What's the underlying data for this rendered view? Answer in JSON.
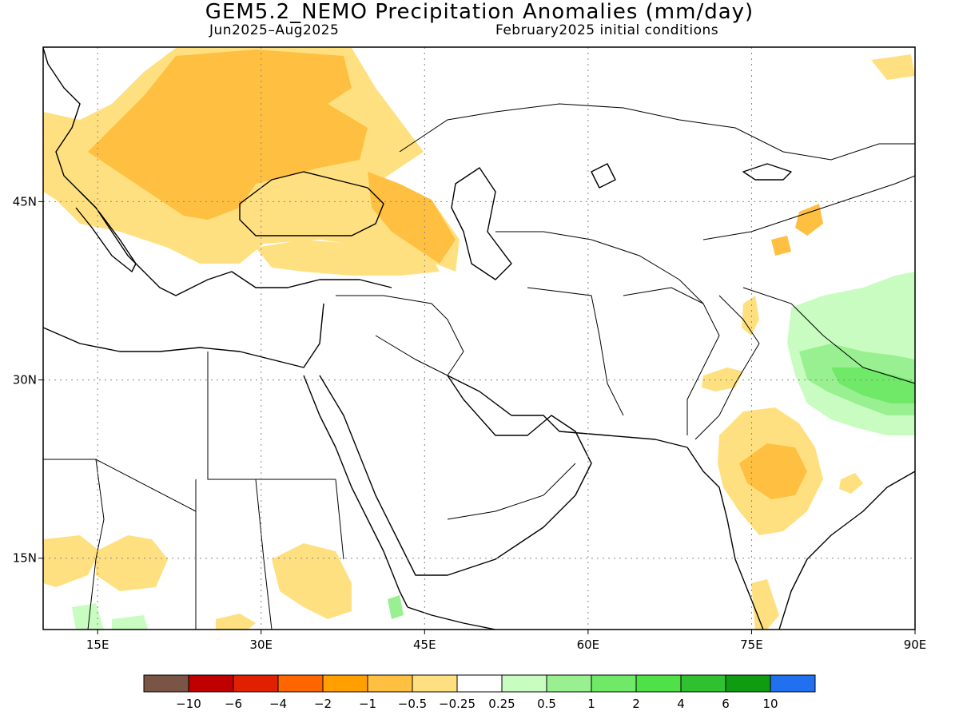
{
  "title": "GEM5.2_NEMO Precipitation Anomalies (mm/day)",
  "period": "Jun2025–Aug2025",
  "init": "February2025 initial conditions",
  "map": {
    "lon_range": [
      10,
      90
    ],
    "lat_range": [
      9,
      58
    ],
    "x_ticks": [
      {
        "lon": 15,
        "label": "15E"
      },
      {
        "lon": 30,
        "label": "30E"
      },
      {
        "lon": 45,
        "label": "45E"
      },
      {
        "lon": 60,
        "label": "60E"
      },
      {
        "lon": 75,
        "label": "75E"
      },
      {
        "lon": 90,
        "label": "90E"
      }
    ],
    "y_ticks": [
      {
        "lat": 45,
        "label": "45N"
      },
      {
        "lat": 30,
        "label": "30N"
      },
      {
        "lat": 15,
        "label": "15N"
      }
    ],
    "grid": "dotted"
  },
  "colorbar": {
    "colors": [
      "#7a5444",
      "#c00000",
      "#e02000",
      "#ff6600",
      "#ffa000",
      "#ffbf40",
      "#ffe080",
      "#ffffff",
      "#c8fcc0",
      "#98f090",
      "#70e868",
      "#50e048",
      "#30c030",
      "#109c10",
      "#2070f0"
    ],
    "labels": [
      "−10",
      "−6",
      "−4",
      "−2",
      "−1",
      "−0.5",
      "−0.25",
      "0.25",
      "0.5",
      "1",
      "2",
      "4",
      "6",
      "10"
    ]
  }
}
